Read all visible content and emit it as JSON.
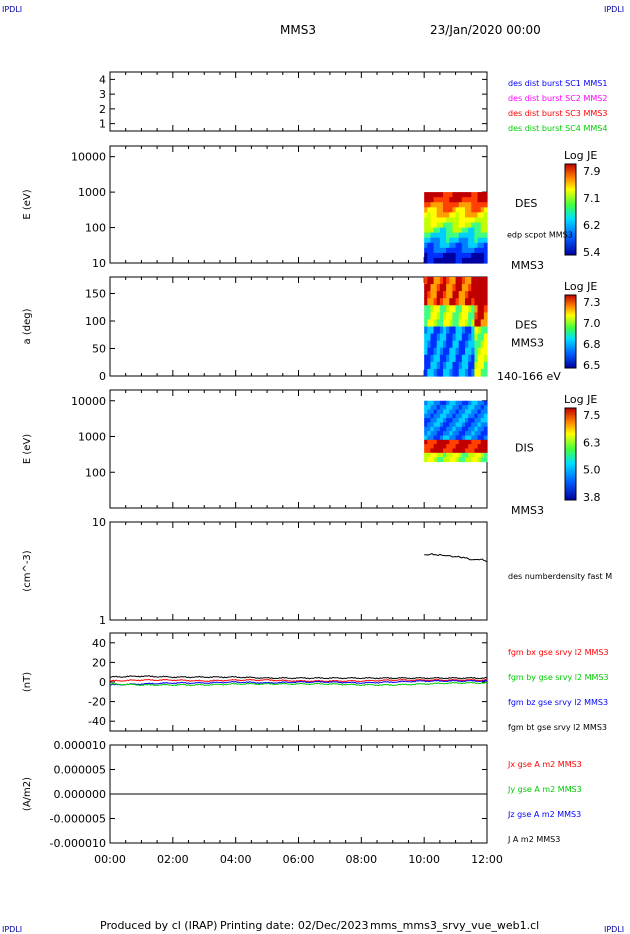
{
  "header": {
    "corner_tl": "IPDLI",
    "corner_tr": "IPDLI",
    "corner_bl": "IPDLI",
    "corner_br": "IPDLI",
    "spacecraft": "MMS3",
    "date": "23/Jan/2020 00:00"
  },
  "footer": {
    "produced_by": "Produced by cl (IRAP)",
    "printing_date": "Printing date: 02/Dec/2023",
    "file": "mms_mms3_srvy_vue_web1.cl"
  },
  "colors": {
    "blue": "#0000ff",
    "magenta": "#ff00ff",
    "red": "#ff0000",
    "green": "#00cc00",
    "black": "#000000"
  },
  "chart_data": [
    {
      "type": "line",
      "ylabel": "",
      "ylim": [
        0.5,
        4.5
      ],
      "yticks": [
        "1",
        "2",
        "3",
        "4"
      ],
      "legend": [
        {
          "text": "des dist burst SC1 MMS1",
          "color": "#0000ff"
        },
        {
          "text": "des dist burst SC2 MMS2",
          "color": "#ff00ff"
        },
        {
          "text": "des dist burst SC3 MMS3",
          "color": "#ff0000"
        },
        {
          "text": "des dist burst SC4 MMS4",
          "color": "#00cc00"
        }
      ],
      "series": []
    },
    {
      "type": "heatmap",
      "ylabel": "E (eV)",
      "yscale": "log",
      "ylim": [
        10,
        20000
      ],
      "yticks": [
        "10",
        "100",
        "1000",
        "10000"
      ],
      "x_range": [
        "10:00",
        "12:00"
      ],
      "y_range_ev": [
        10,
        1000
      ],
      "right_labels": [
        "DES",
        "edp scpot MMS3",
        "MMS3"
      ],
      "colorbar": {
        "title": "Log JE",
        "ticks": [
          "7.9",
          "7.1",
          "6.2",
          "5.4"
        ]
      }
    },
    {
      "type": "heatmap",
      "ylabel": "a (deg)",
      "ylim": [
        0,
        180
      ],
      "yticks": [
        "0",
        "50",
        "100",
        "150"
      ],
      "x_range": [
        "10:00",
        "12:00"
      ],
      "right_labels": [
        "DES",
        "MMS3",
        "140-166 eV"
      ],
      "colorbar": {
        "title": "Log JE",
        "ticks": [
          "7.3",
          "7.0",
          "6.8",
          "6.5"
        ]
      }
    },
    {
      "type": "heatmap",
      "ylabel": "E (eV)",
      "yscale": "log",
      "ylim": [
        10,
        20000
      ],
      "yticks": [
        "100",
        "1000",
        "10000"
      ],
      "x_range": [
        "10:00",
        "12:00"
      ],
      "y_range_ev": [
        200,
        10000
      ],
      "right_labels": [
        "DIS",
        "MMS3"
      ],
      "colorbar": {
        "title": "Log JE",
        "ticks": [
          "7.5",
          "6.3",
          "5.0",
          "3.8"
        ]
      }
    },
    {
      "type": "line",
      "ylabel": "(cm^-3)",
      "yscale": "log",
      "ylim": [
        1,
        10
      ],
      "yticks": [
        "1",
        "10"
      ],
      "legend": [
        {
          "text": "des numberdensity fast M",
          "color": "#000000"
        }
      ],
      "series": [
        {
          "color": "#000000",
          "x_hours": [
            10.0,
            10.2,
            10.4,
            10.6,
            10.8,
            11.0,
            11.2,
            11.4,
            11.6,
            11.8,
            12.0
          ],
          "values": [
            4.6,
            4.7,
            4.6,
            4.6,
            4.5,
            4.4,
            4.4,
            4.2,
            4.1,
            4.2,
            3.9
          ]
        }
      ]
    },
    {
      "type": "line",
      "ylabel": "(nT)",
      "ylim": [
        -50,
        50
      ],
      "yticks": [
        "-40",
        "-20",
        "0",
        "20",
        "40"
      ],
      "legend": [
        {
          "text": "fgm bx gse srvy l2 MMS3",
          "color": "#ff0000"
        },
        {
          "text": "fgm by gse srvy l2 MMS3",
          "color": "#00cc00"
        },
        {
          "text": "fgm bz gse srvy l2 MMS3",
          "color": "#0000ff"
        },
        {
          "text": "fgm bt gse srvy l2 MMS3",
          "color": "#000000"
        }
      ],
      "series": [
        {
          "color": "#000000",
          "x_hours": [
            0,
            1,
            2,
            3,
            4,
            5,
            6,
            7,
            8,
            9,
            10,
            11,
            12
          ],
          "values": [
            5,
            6,
            5,
            5,
            5,
            4,
            4,
            4,
            4,
            4,
            4,
            4,
            4
          ]
        },
        {
          "color": "#ff0000",
          "x_hours": [
            0,
            1,
            2,
            3,
            4,
            5,
            6,
            7,
            8,
            9,
            10,
            11,
            12
          ],
          "values": [
            1,
            2,
            2,
            1,
            2,
            2,
            1,
            1,
            1,
            2,
            2,
            2,
            2
          ]
        },
        {
          "color": "#0000ff",
          "x_hours": [
            0,
            1,
            2,
            3,
            4,
            5,
            6,
            7,
            8,
            9,
            10,
            11,
            12
          ],
          "values": [
            -3,
            -2,
            -1,
            -1,
            0,
            -1,
            0,
            0,
            -1,
            0,
            1,
            1,
            1
          ]
        },
        {
          "color": "#00cc00",
          "x_hours": [
            0,
            1,
            2,
            3,
            4,
            5,
            6,
            7,
            8,
            9,
            10,
            11,
            12
          ],
          "values": [
            -2,
            -3,
            -3,
            -3,
            -2,
            -2,
            -2,
            -2,
            -3,
            -3,
            -2,
            -1,
            -1
          ]
        }
      ]
    },
    {
      "type": "line",
      "ylabel": "(A/m2)",
      "ylim": [
        -1e-05,
        1e-05
      ],
      "yticks": [
        "-0.000010",
        "-0.000005",
        "0.000000",
        "0.000005",
        "0.000010"
      ],
      "legend": [
        {
          "text": "Jx gse A m2 MMS3",
          "color": "#ff0000"
        },
        {
          "text": "Jy gse A m2 MMS3",
          "color": "#00cc00"
        },
        {
          "text": "Jz gse A m2 MMS3",
          "color": "#0000ff"
        },
        {
          "text": "J A m2 MMS3",
          "color": "#000000"
        }
      ],
      "series": [
        {
          "color": "#000000",
          "x_hours": [
            0,
            12
          ],
          "values": [
            0,
            0
          ]
        }
      ]
    }
  ],
  "xaxis": {
    "ticks": [
      "00:00",
      "02:00",
      "04:00",
      "06:00",
      "08:00",
      "10:00",
      "12:00"
    ],
    "xlim_hours": [
      0,
      12
    ]
  }
}
